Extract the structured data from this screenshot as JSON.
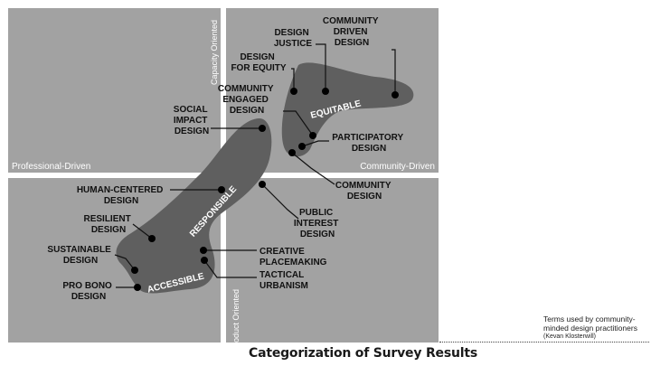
{
  "axes": {
    "top": "Capacity Oriented",
    "bottom": "Product Oriented",
    "left": "Professional-Driven",
    "right": "Community-Driven"
  },
  "groups": {
    "equitable": "EQUITABLE",
    "responsible": "RESPONSIBLE",
    "accessible": "ACCESSIBLE"
  },
  "terms": {
    "community_driven_design": [
      "COMMUNITY",
      "DRIVEN",
      "DESIGN"
    ],
    "design_justice": [
      "DESIGN",
      "JUSTICE"
    ],
    "design_for_equity": [
      "DESIGN",
      "FOR EQUITY"
    ],
    "community_engaged_design": [
      "COMMUNITY",
      "ENGAGED",
      "DESIGN"
    ],
    "social_impact_design": [
      "SOCIAL",
      "IMPACT",
      "DESIGN"
    ],
    "participatory_design": [
      "PARTICIPATORY",
      "DESIGN"
    ],
    "community_design": [
      "COMMUNITY",
      "DESIGN"
    ],
    "human_centered_design": [
      "HUMAN-CENTERED",
      "DESIGN"
    ],
    "public_interest_design": [
      "PUBLIC",
      "INTEREST",
      "DESIGN"
    ],
    "resilient_design": [
      "RESILIENT",
      "DESIGN"
    ],
    "sustainable_design": [
      "SUSTAINABLE",
      "DESIGN"
    ],
    "creative_placemaking": [
      "CREATIVE",
      "PLACEMAKING"
    ],
    "tactical_urbanism": [
      "TACTICAL",
      "URBANISM"
    ],
    "pro_bono_design": [
      "PRO BONO",
      "DESIGN"
    ]
  },
  "caption": "Categorization of Survey Results",
  "credit": {
    "line": "Terms used by community-minded design practitioners",
    "author": "(Kevan Klosterwill)"
  }
}
